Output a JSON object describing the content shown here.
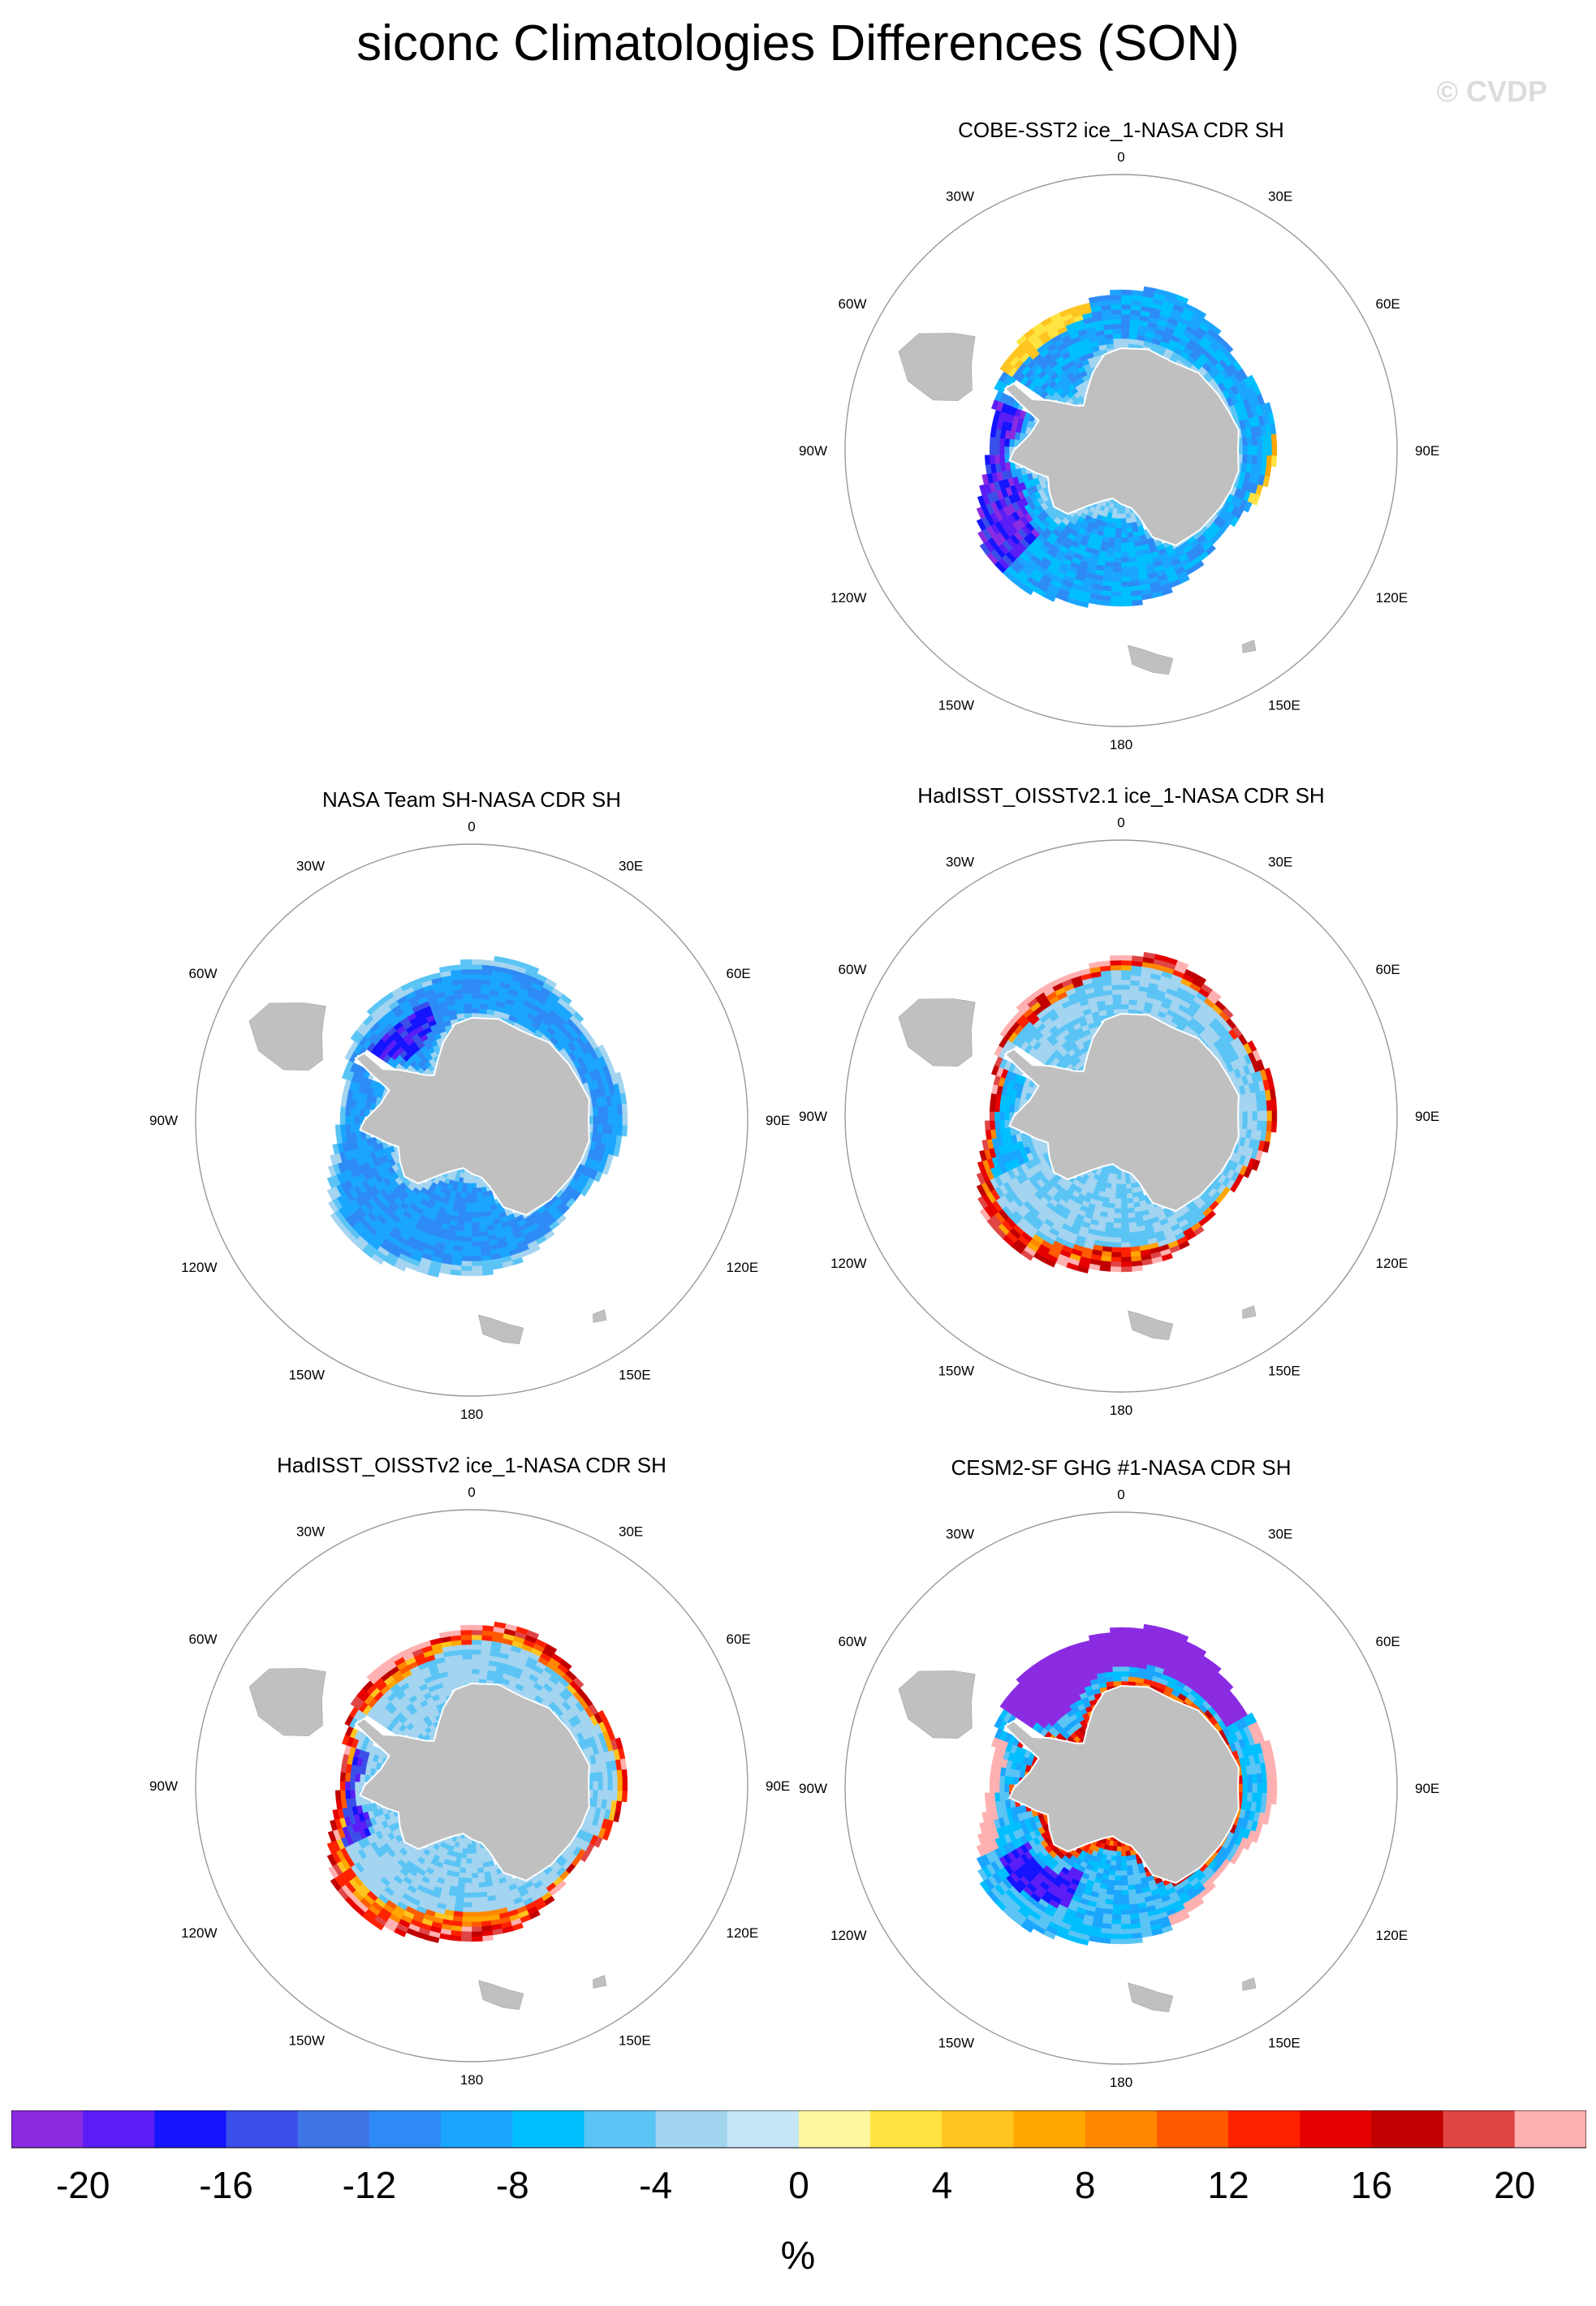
{
  "title": "siconc Climatologies Differences (SON)",
  "watermark": "© CVDP",
  "chart_data": {
    "type": "heatmap",
    "projection": "south-polar-stereographic",
    "longitude_labels": [
      "0",
      "30E",
      "60E",
      "90E",
      "120E",
      "150E",
      "180",
      "150W",
      "120W",
      "90W",
      "60W",
      "30W"
    ],
    "colorbar": {
      "unit": "%",
      "min": -20,
      "max": 20,
      "step": 2,
      "tick_labels": [
        "-20",
        "-16",
        "-12",
        "-8",
        "-4",
        "0",
        "4",
        "8",
        "12",
        "16",
        "20"
      ],
      "colors": [
        "#8a2be2",
        "#5a1df5",
        "#1414ff",
        "#3a4fe8",
        "#3d74e6",
        "#2e8bf5",
        "#1aa5ff",
        "#00bfff",
        "#5ac4f5",
        "#a3d4f0",
        "#c5e6f7",
        "#fff7a0",
        "#ffe340",
        "#ffc41f",
        "#ffa600",
        "#ff8800",
        "#ff5a00",
        "#ff2200",
        "#e60000",
        "#c00000",
        "#e04545",
        "#ffb0b0"
      ]
    },
    "panels": [
      {
        "title": "COBE-SST2 ice_1-NASA CDR SH",
        "pattern": "cobe"
      },
      {
        "title": "NASA Team SH-NASA CDR SH",
        "pattern": "nasateam"
      },
      {
        "title": "HadISST_OISSTv2.1 ice_1-NASA CDR SH",
        "pattern": "hadisst21"
      },
      {
        "title": "HadISST_OISSTv2 ice_1-NASA CDR SH",
        "pattern": "hadisst2"
      },
      {
        "title": "CESM2-SF GHG #1-NASA CDR SH",
        "pattern": "cesm"
      }
    ]
  }
}
